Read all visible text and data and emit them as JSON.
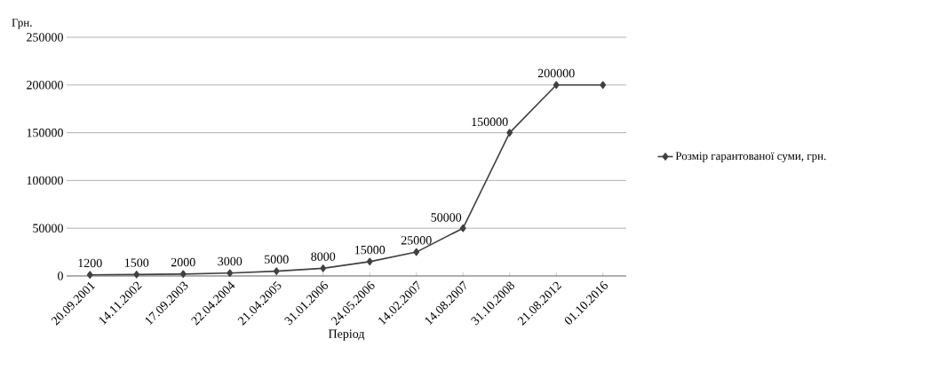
{
  "chart_data": {
    "type": "line",
    "xlabel": "Період",
    "ylabel": "Грн.",
    "categories": [
      "20.09.2001",
      "14.11.2002",
      "17.09.2003",
      "22.04.2004",
      "21.04.2005",
      "31.01.2006",
      "24.05.2006",
      "14.02.2007",
      "14.08.2007",
      "31.10.2008",
      "21.08.2012",
      "01.10.2016"
    ],
    "series": [
      {
        "name": "Розмір гарантованої суми, грн.",
        "color": "#404040",
        "values": [
          1200,
          1500,
          2000,
          3000,
          5000,
          8000,
          15000,
          25000,
          50000,
          150000,
          200000,
          200000
        ],
        "value_labels": [
          "1200",
          "1500",
          "2000",
          "3000",
          "5000",
          "8000",
          "15000",
          "25000",
          "50000",
          "150000",
          "200000",
          null
        ]
      }
    ],
    "ylim": [
      0,
      250000
    ],
    "yticks": [
      0,
      50000,
      100000,
      150000,
      200000,
      250000
    ],
    "grid": "y",
    "legend": "right",
    "marker": "diamond",
    "line_style": "solid"
  }
}
